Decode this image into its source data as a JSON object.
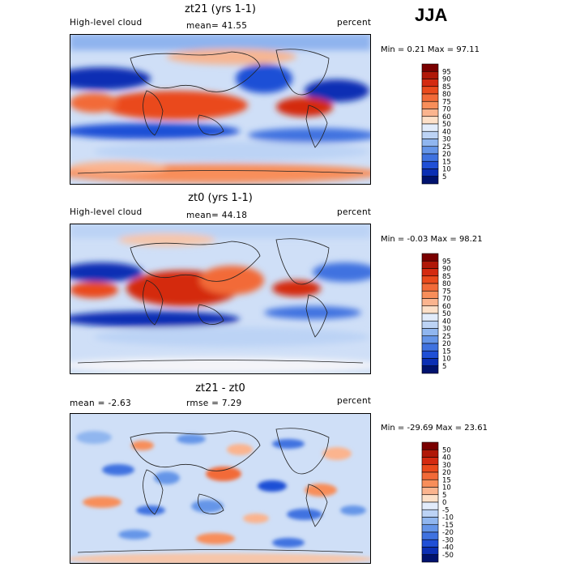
{
  "season": "JJA",
  "panels": [
    {
      "title": "zt21 (yrs 1-1)",
      "left_label": "High-level cloud",
      "center_label": "mean=  41.55",
      "right_label": "percent",
      "minmax": "Min =   0.21 Max =  97.11",
      "legend_levels": [
        "95",
        "90",
        "85",
        "80",
        "75",
        "70",
        "60",
        "50",
        "40",
        "30",
        "25",
        "20",
        "15",
        "10",
        "5"
      ],
      "legend_colors": [
        "#7a0000",
        "#b01808",
        "#d42a10",
        "#ea4a1c",
        "#f26a38",
        "#f88e5a",
        "#fbb48e",
        "#fde0c8",
        "#e2ecfb",
        "#bcd3f5",
        "#90b6ef",
        "#6595e8",
        "#3f72e0",
        "#1f4fd6",
        "#0b2fb4",
        "#00126e"
      ],
      "stats": [
        "mean=  41.55"
      ]
    },
    {
      "title": "zt0 (yrs 1-1)",
      "left_label": "High-level cloud",
      "center_label": "mean=  44.18",
      "right_label": "percent",
      "minmax": "Min =  -0.03 Max =  98.21",
      "legend_levels": [
        "95",
        "90",
        "85",
        "80",
        "75",
        "70",
        "60",
        "50",
        "40",
        "30",
        "25",
        "20",
        "15",
        "10",
        "5"
      ],
      "legend_colors": [
        "#7a0000",
        "#b01808",
        "#d42a10",
        "#ea4a1c",
        "#f26a38",
        "#f88e5a",
        "#fbb48e",
        "#fde0c8",
        "#e2ecfb",
        "#bcd3f5",
        "#90b6ef",
        "#6595e8",
        "#3f72e0",
        "#1f4fd6",
        "#0b2fb4",
        "#00126e"
      ]
    },
    {
      "title": "zt21 - zt0",
      "left_label": "mean =   -2.63",
      "center_label": "rmse =    7.29",
      "right_label": "percent",
      "minmax": "Min = -29.69 Max =  23.61",
      "legend_levels": [
        "50",
        "40",
        "30",
        "20",
        "15",
        "10",
        "5",
        "0",
        "-5",
        "-10",
        "-15",
        "-20",
        "-30",
        "-40",
        "-50"
      ],
      "legend_colors": [
        "#7a0000",
        "#b01808",
        "#d42a10",
        "#ea4a1c",
        "#f26a38",
        "#f88e5a",
        "#fbb48e",
        "#fde0c8",
        "#e2ecfb",
        "#bcd3f5",
        "#90b6ef",
        "#6595e8",
        "#3f72e0",
        "#1f4fd6",
        "#0b2fb4",
        "#00126e"
      ]
    }
  ]
}
